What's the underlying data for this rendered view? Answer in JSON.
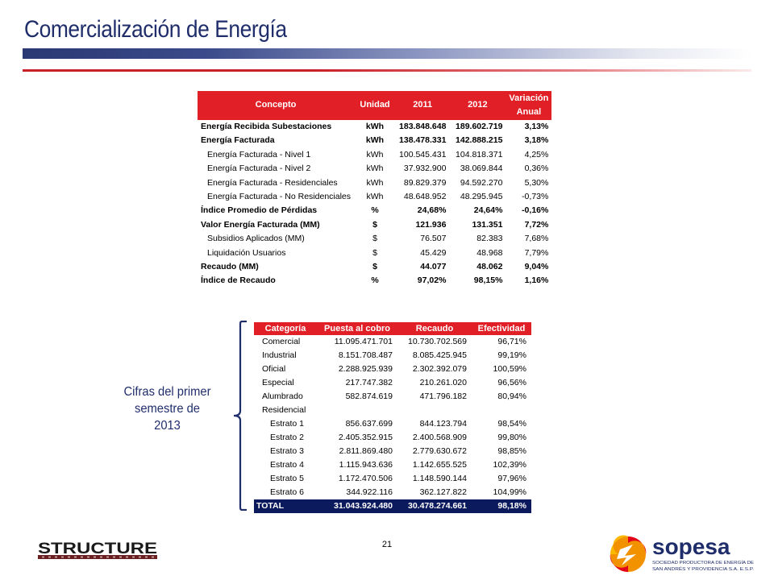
{
  "header": {
    "title": "Comercialización de Energía"
  },
  "table1": {
    "headers": [
      "Concepto",
      "Unidad",
      "2011",
      "2012",
      "Variación",
      "Anual"
    ],
    "rows": [
      {
        "concepto": "Energía Recibida Subestaciones",
        "unidad": "kWh",
        "y2011": "183.848.648",
        "y2012": "189.602.719",
        "variacion": "3,13%",
        "bold": true
      },
      {
        "concepto": "Energía Facturada",
        "unidad": "kWh",
        "y2011": "138.478.331",
        "y2012": "142.888.215",
        "variacion": "3,18%",
        "bold": true
      },
      {
        "concepto": "Energía Facturada - Nivel 1",
        "unidad": "kWh",
        "y2011": "100.545.431",
        "y2012": "104.818.371",
        "variacion": "4,25%",
        "bold": false
      },
      {
        "concepto": "Energía Facturada - Nivel 2",
        "unidad": "kWh",
        "y2011": "37.932.900",
        "y2012": "38.069.844",
        "variacion": "0,36%",
        "bold": false
      },
      {
        "concepto": "Energía Facturada - Residenciales",
        "unidad": "kWh",
        "y2011": "89.829.379",
        "y2012": "94.592.270",
        "variacion": "5,30%",
        "bold": false
      },
      {
        "concepto": "Energía Facturada - No Residenciales",
        "unidad": "kWh",
        "y2011": "48.648.952",
        "y2012": "48.295.945",
        "variacion": "-0,73%",
        "bold": false
      },
      {
        "concepto": "Índice Promedio de Pérdidas",
        "unidad": "%",
        "y2011": "24,68%",
        "y2012": "24,64%",
        "variacion": "-0,16%",
        "bold": true
      },
      {
        "concepto": "Valor Energía Facturada (MM)",
        "unidad": "$",
        "y2011": "121.936",
        "y2012": "131.351",
        "variacion": "7,72%",
        "bold": true
      },
      {
        "concepto": "Subsidios Aplicados (MM)",
        "unidad": "$",
        "y2011": "76.507",
        "y2012": "82.383",
        "variacion": "7,68%",
        "bold": false
      },
      {
        "concepto": "Liquidación Usuarios",
        "unidad": "$",
        "y2011": "45.429",
        "y2012": "48.968",
        "variacion": "7,79%",
        "bold": false
      },
      {
        "concepto": "Recaudo (MM)",
        "unidad": "$",
        "y2011": "44.077",
        "y2012": "48.062",
        "variacion": "9,04%",
        "bold": true
      },
      {
        "concepto": "Índice de Recaudo",
        "unidad": "%",
        "y2011": "97,02%",
        "y2012": "98,15%",
        "variacion": "1,16%",
        "bold": true
      }
    ]
  },
  "table2": {
    "headers": [
      "Categoría",
      "Puesta al cobro",
      "Recaudo",
      "Efectividad"
    ],
    "rows": [
      {
        "categoria": "Comercial",
        "puesta": "11.095.471.701",
        "recaudo": "10.730.702.569",
        "efectividad": "96,71%",
        "sub": false
      },
      {
        "categoria": "Industrial",
        "puesta": "8.151.708.487",
        "recaudo": "8.085.425.945",
        "efectividad": "99,19%",
        "sub": false
      },
      {
        "categoria": "Oficial",
        "puesta": "2.288.925.939",
        "recaudo": "2.302.392.079",
        "efectividad": "100,59%",
        "sub": false
      },
      {
        "categoria": "Especial",
        "puesta": "217.747.382",
        "recaudo": "210.261.020",
        "efectividad": "96,56%",
        "sub": false
      },
      {
        "categoria": "Alumbrado",
        "puesta": "582.874.619",
        "recaudo": "471.796.182",
        "efectividad": "80,94%",
        "sub": false
      },
      {
        "categoria": "Residencial",
        "puesta": "",
        "recaudo": "",
        "efectividad": "",
        "sub": false
      },
      {
        "categoria": "Estrato 1",
        "puesta": "856.637.699",
        "recaudo": "844.123.794",
        "efectividad": "98,54%",
        "sub": true
      },
      {
        "categoria": "Estrato 2",
        "puesta": "2.405.352.915",
        "recaudo": "2.400.568.909",
        "efectividad": "99,80%",
        "sub": true
      },
      {
        "categoria": "Estrato 3",
        "puesta": "2.811.869.480",
        "recaudo": "2.779.630.672",
        "efectividad": "98,85%",
        "sub": true
      },
      {
        "categoria": "Estrato 4",
        "puesta": "1.115.943.636",
        "recaudo": "1.142.655.525",
        "efectividad": "102,39%",
        "sub": true
      },
      {
        "categoria": "Estrato 5",
        "puesta": "1.172.470.506",
        "recaudo": "1.148.590.144",
        "efectividad": "97,96%",
        "sub": true
      },
      {
        "categoria": "Estrato 6",
        "puesta": "344.922.116",
        "recaudo": "362.127.822",
        "efectividad": "104,99%",
        "sub": true
      }
    ],
    "total": {
      "categoria": "TOTAL",
      "puesta": "31.043.924.480",
      "recaudo": "30.478.274.661",
      "efectividad": "98,18%"
    }
  },
  "side_note": {
    "line1": "Cifras del primer",
    "line2": "semestre de",
    "line3": "2013"
  },
  "footer": {
    "page_number": "21",
    "structure_logo": "STRUCTURE",
    "sopesa_logo": "sopesa",
    "sopesa_tagline1": "SOCIEDAD PRODUCTORA DE ENERGÍA DE",
    "sopesa_tagline2": "SAN ANDRÉS Y PROVIDENCIA S.A. E.S.P."
  },
  "colors": {
    "title": "#1f2d6b",
    "header_red": "#e01f26",
    "total_navy": "#0b1a5c",
    "logo_orange": "#f39200"
  }
}
